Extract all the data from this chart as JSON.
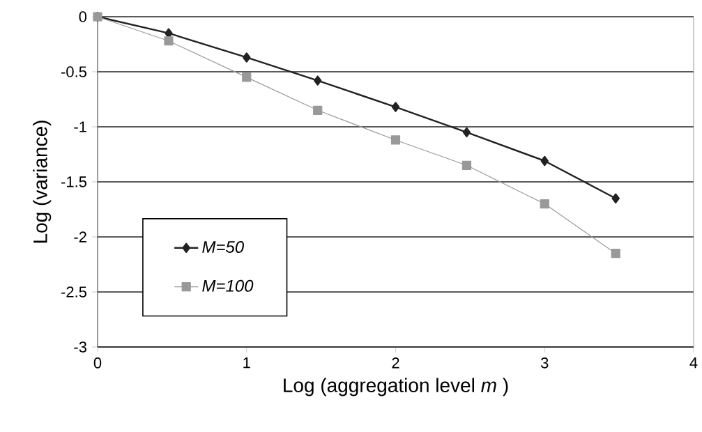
{
  "chart_data": {
    "type": "line",
    "xlabel": "Log (aggregation level *m* )",
    "ylabel": "Log (variance)",
    "x": [
      0,
      0.477,
      1,
      1.477,
      2,
      2.477,
      3,
      3.477
    ],
    "series": [
      {
        "name": "M=50",
        "color": "#222222",
        "marker": "diamond",
        "values": [
          0,
          -0.15,
          -0.37,
          -0.58,
          -0.82,
          -1.05,
          -1.31,
          -1.65
        ]
      },
      {
        "name": "M=100",
        "color": "#999999",
        "marker": "square",
        "values": [
          0,
          -0.22,
          -0.55,
          -0.85,
          -1.12,
          -1.35,
          -1.7,
          -2.15
        ]
      }
    ],
    "xlim": [
      0,
      4
    ],
    "ylim": [
      -3,
      0
    ],
    "xticks": [
      0,
      1,
      2,
      3,
      4
    ],
    "yticks": [
      -3,
      -2.5,
      -2,
      -1.5,
      -1,
      -0.5,
      0
    ],
    "grid": "y",
    "legend": "bottom left",
    "line_style": "solid"
  }
}
